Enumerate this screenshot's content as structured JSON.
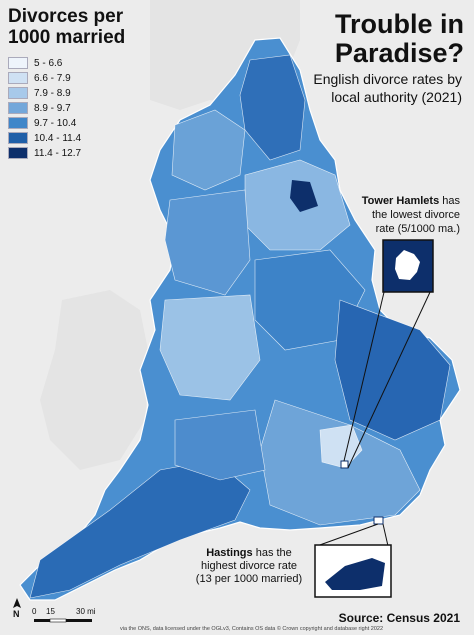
{
  "legend": {
    "title_line1": "Divorces per",
    "title_line2": "1000 married",
    "items": [
      {
        "label": "5 - 6.6",
        "color": "#eef4fb"
      },
      {
        "label": "6.6 - 7.9",
        "color": "#cfe1f3"
      },
      {
        "label": "7.9 - 8.9",
        "color": "#a7c9ea"
      },
      {
        "label": "8.9 - 9.7",
        "color": "#73a7da"
      },
      {
        "label": "9.7 - 10.4",
        "color": "#3f86c9"
      },
      {
        "label": "10.4 - 11.4",
        "color": "#1f5fa8"
      },
      {
        "label": "11.4 - 12.7",
        "color": "#0d2f6b"
      }
    ]
  },
  "header": {
    "title_line1": "Trouble in",
    "title_line2": "Paradise?",
    "subtitle_line1": "English divorce rates by",
    "subtitle_line2": "local authority (2021)"
  },
  "callouts": {
    "lowest": {
      "place": "Tower Hamlets",
      "text_line1": " has",
      "text_line2": "the lowest divorce",
      "text_line3": "rate (5/1000 ma.)"
    },
    "highest": {
      "place": "Hastings",
      "text_line1": " has the",
      "text_line2": "highest divorce rate",
      "text_line3": "(13 per 1000 married)"
    }
  },
  "scale": {
    "labels": [
      "0",
      "15",
      "30 mi"
    ]
  },
  "north_label": "N",
  "source": "Source: Census 2021",
  "credit": "via the ONS, data licensed under the OGLv3, Contains OS data © Crown copyright and database right 2022",
  "colors": {
    "sea": "#ececec",
    "land_outline": "#ffffff",
    "highlight": "#0d2f6b"
  }
}
